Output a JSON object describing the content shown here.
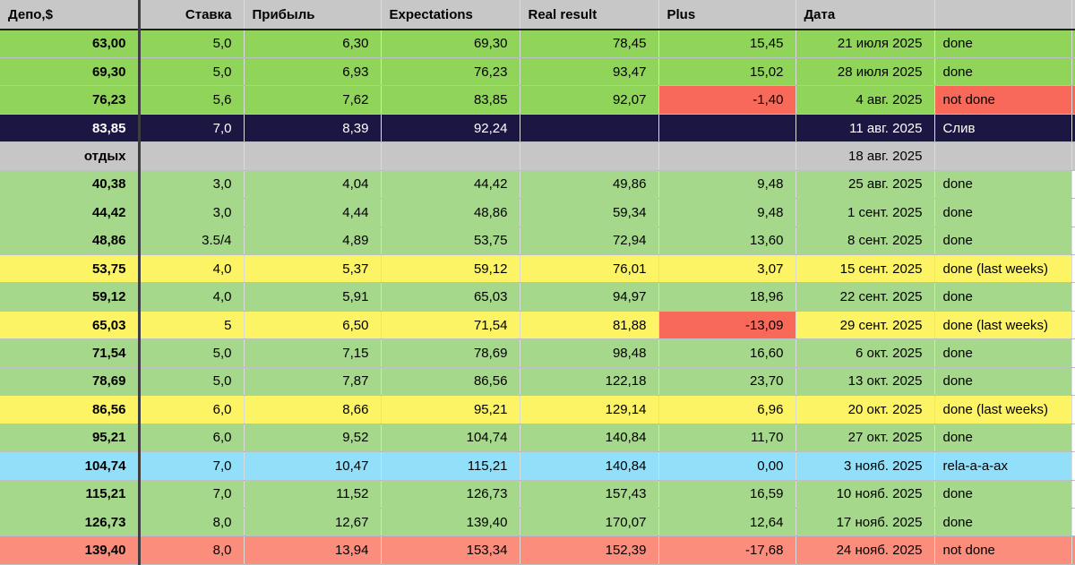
{
  "columns": [
    {
      "label": "Депо,$",
      "align": "left"
    },
    {
      "label": "Ставка",
      "align": "right"
    },
    {
      "label": "Прибыль",
      "align": "left"
    },
    {
      "label": "Expectations",
      "align": "left"
    },
    {
      "label": "Real result",
      "align": "left"
    },
    {
      "label": "Plus",
      "align": "left"
    },
    {
      "label": "Дата",
      "align": "left"
    },
    {
      "label": "",
      "align": "left"
    }
  ],
  "colors": {
    "header": "#c7c7c7",
    "green1": "#90d45a",
    "green2": "#a6d88b",
    "yellow": "#fcf464",
    "navy": "#1b1642",
    "gray": "#c6c6c6",
    "blue": "#92dffa",
    "salmon": "#fb8d7d",
    "red": "#f8695a",
    "white": "#ffffff"
  },
  "rows": [
    {
      "style": "green1",
      "extend": true,
      "cells": [
        "63,00",
        "5,0",
        "6,30",
        "69,30",
        "78,45",
        "15,45",
        "21 июля 2025",
        "done"
      ]
    },
    {
      "style": "green1",
      "extend": true,
      "cells": [
        "69,30",
        "5,0",
        "6,93",
        "76,23",
        "93,47",
        "15,02",
        "28 июля 2025",
        "done"
      ]
    },
    {
      "style": "green1",
      "extend": true,
      "overrides": {
        "5": "red",
        "7": "red"
      },
      "cells": [
        "76,23",
        "5,6",
        "7,62",
        "83,85",
        "92,07",
        "-1,40",
        "4 авг. 2025",
        "not done"
      ]
    },
    {
      "style": "navy",
      "extend": true,
      "cells": [
        "83,85",
        "7,0",
        "8,39",
        "92,24",
        "",
        "",
        "11 авг. 2025",
        "Слив"
      ]
    },
    {
      "style": "gray",
      "extend": true,
      "cells": [
        "отдых",
        "",
        "",
        "",
        "",
        "",
        "18 авг. 2025",
        ""
      ]
    },
    {
      "style": "green2",
      "extend": false,
      "cells": [
        "40,38",
        "3,0",
        "4,04",
        "44,42",
        "49,86",
        "9,48",
        "25 авг. 2025",
        "done"
      ]
    },
    {
      "style": "green2",
      "extend": false,
      "cells": [
        "44,42",
        "3,0",
        "4,44",
        "48,86",
        "59,34",
        "9,48",
        "1 сент. 2025",
        "done"
      ]
    },
    {
      "style": "green2",
      "extend": false,
      "cells": [
        "48,86",
        "3.5/4",
        "4,89",
        "53,75",
        "72,94",
        "13,60",
        "8 сент. 2025",
        "done"
      ]
    },
    {
      "style": "yellow",
      "extend": false,
      "cells": [
        "53,75",
        "4,0",
        "5,37",
        "59,12",
        "76,01",
        "3,07",
        "15 сент. 2025",
        "done (last weeks)"
      ]
    },
    {
      "style": "green2",
      "extend": false,
      "cells": [
        "59,12",
        "4,0",
        "5,91",
        "65,03",
        "94,97",
        "18,96",
        "22 сент. 2025",
        "done"
      ]
    },
    {
      "style": "yellow",
      "extend": false,
      "overrides": {
        "5": "red"
      },
      "cells": [
        "65,03",
        "5",
        "6,50",
        "71,54",
        "81,88",
        "-13,09",
        "29 сент. 2025",
        "done (last weeks)"
      ]
    },
    {
      "style": "green2",
      "extend": false,
      "cells": [
        "71,54",
        "5,0",
        "7,15",
        "78,69",
        "98,48",
        "16,60",
        "6 окт. 2025",
        "done"
      ]
    },
    {
      "style": "green2",
      "extend": false,
      "cells": [
        "78,69",
        "5,0",
        "7,87",
        "86,56",
        "122,18",
        "23,70",
        "13 окт. 2025",
        "done"
      ]
    },
    {
      "style": "yellow",
      "extend": false,
      "cells": [
        "86,56",
        "6,0",
        "8,66",
        "95,21",
        "129,14",
        "6,96",
        "20 окт. 2025",
        "done (last weeks)"
      ]
    },
    {
      "style": "green2",
      "extend": false,
      "cells": [
        "95,21",
        "6,0",
        "9,52",
        "104,74",
        "140,84",
        "11,70",
        "27 окт. 2025",
        "done"
      ]
    },
    {
      "style": "blue",
      "extend": false,
      "cells": [
        "104,74",
        "7,0",
        "10,47",
        "115,21",
        "140,84",
        "0,00",
        "3 нояб. 2025",
        "rela-a-a-ax"
      ]
    },
    {
      "style": "green2",
      "extend": false,
      "cells": [
        "115,21",
        "7,0",
        "11,52",
        "126,73",
        "157,43",
        "16,59",
        "10 нояб. 2025",
        "done"
      ]
    },
    {
      "style": "green2",
      "extend": false,
      "cells": [
        "126,73",
        "8,0",
        "12,67",
        "139,40",
        "170,07",
        "12,64",
        "17 нояб. 2025",
        "done"
      ]
    },
    {
      "style": "salmon",
      "extend": true,
      "cells": [
        "139,40",
        "8,0",
        "13,94",
        "153,34",
        "152,39",
        "-17,68",
        "24 нояб. 2025",
        "not done"
      ]
    }
  ]
}
